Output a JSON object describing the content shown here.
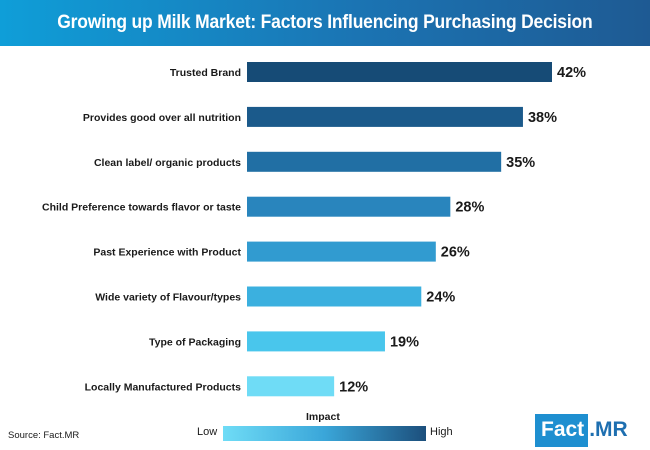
{
  "header": {
    "title": "Growing up Milk Market: Factors Influencing Purchasing Decision"
  },
  "chart_data": {
    "type": "bar",
    "orientation": "horizontal",
    "categories": [
      "Trusted Brand",
      "Provides good over all nutrition",
      "Clean label/ organic products",
      "Child Preference towards flavor or taste",
      "Past Experience with Product",
      "Wide variety of Flavour/types",
      "Type of Packaging",
      "Locally Manufactured Products"
    ],
    "values": [
      42,
      38,
      35,
      28,
      26,
      24,
      19,
      12
    ],
    "value_labels": [
      "42%",
      "38%",
      "35%",
      "28%",
      "26%",
      "24%",
      "19%",
      "12%"
    ],
    "colors": [
      "#164b76",
      "#1b5a8b",
      "#216fa4",
      "#2985bd",
      "#319bd0",
      "#3bb0df",
      "#49c6ec",
      "#6fdcf6"
    ],
    "title": "Growing up Milk Market: Factors Influencing Purchasing Decision",
    "xlim": [
      0,
      42
    ],
    "grid": false
  },
  "legend": {
    "title": "Impact",
    "low": "Low",
    "high": "High",
    "colors": [
      "#6fdcf6",
      "#3aa6d9",
      "#1c4f7c"
    ]
  },
  "footer": {
    "source": "Source: Fact.MR"
  },
  "logo": {
    "fact": "Fact",
    "mr": ".MR"
  }
}
